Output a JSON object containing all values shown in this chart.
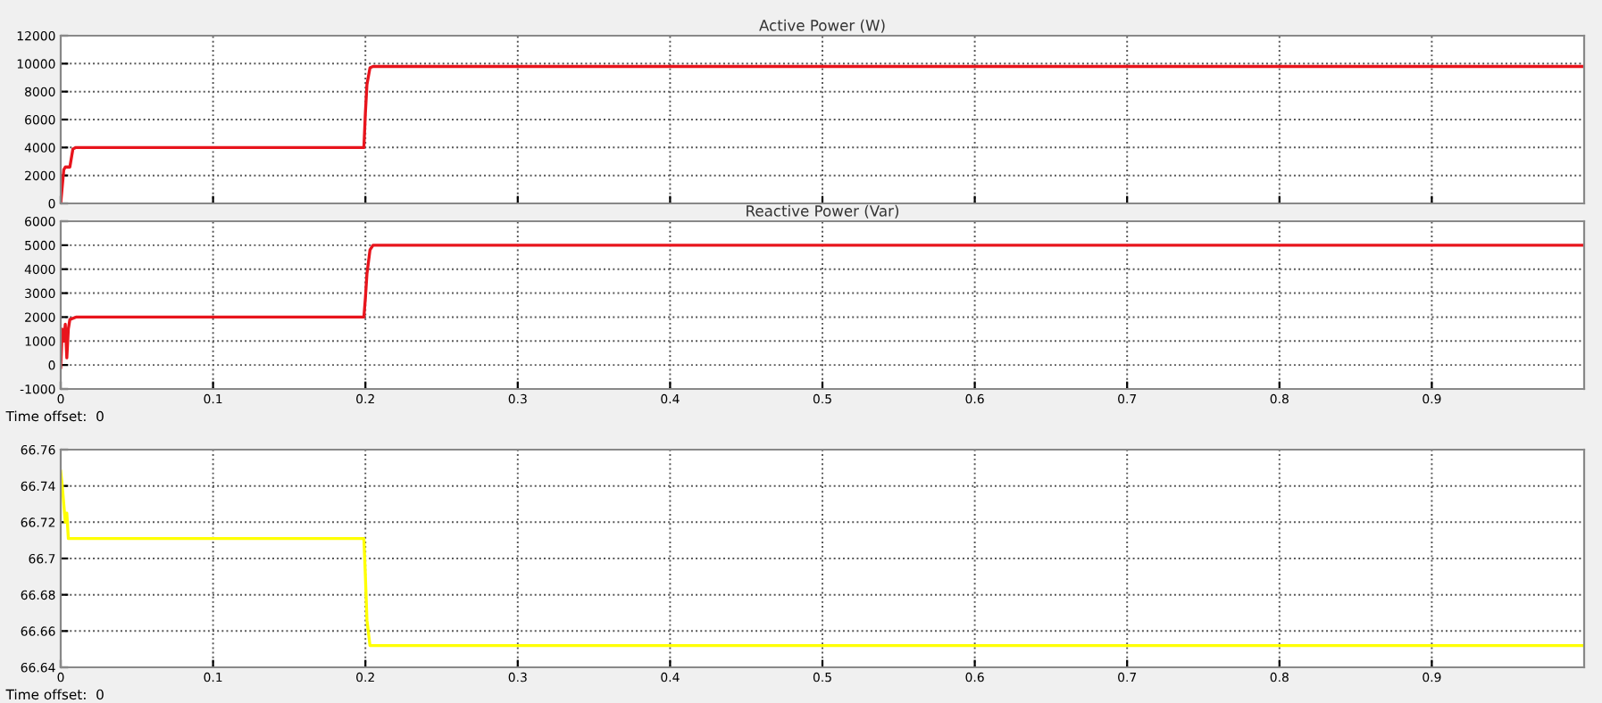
{
  "chart_data": [
    {
      "type": "line",
      "title": "Active Power (W)",
      "x": [
        0,
        0.002,
        0.003,
        0.006,
        0.008,
        0.01,
        0.199,
        0.2,
        0.201,
        0.203,
        0.205,
        1.0
      ],
      "series": [
        {
          "color": "#e8141c",
          "values": [
            0,
            2400,
            2600,
            2600,
            3900,
            4000,
            4000,
            6500,
            8500,
            9700,
            9800,
            9800
          ]
        }
      ],
      "xlim": [
        0,
        1
      ],
      "ylim": [
        0,
        12000
      ],
      "yticks": [
        0,
        2000,
        4000,
        6000,
        8000,
        10000,
        12000
      ],
      "xticks": [
        0,
        0.1,
        0.2,
        0.3,
        0.4,
        0.5,
        0.6,
        0.7,
        0.8,
        0.9
      ],
      "tick_labels": "y",
      "grid": true
    },
    {
      "type": "line",
      "title": "Reactive Power (Var)",
      "x": [
        0,
        0.001,
        0.002,
        0.003,
        0.004,
        0.005,
        0.006,
        0.01,
        0.199,
        0.2,
        0.201,
        0.203,
        0.205,
        1.0
      ],
      "series": [
        {
          "color": "#e8141c",
          "values": [
            -100,
            1500,
            1000,
            1700,
            300,
            1500,
            1900,
            2000,
            2000,
            2800,
            3800,
            4800,
            5000,
            5000
          ]
        }
      ],
      "xlim": [
        0,
        1
      ],
      "ylim": [
        -1000,
        6000
      ],
      "yticks": [
        -1000,
        0,
        1000,
        2000,
        3000,
        4000,
        5000,
        6000
      ],
      "xticks": [
        0,
        0.1,
        0.2,
        0.3,
        0.4,
        0.5,
        0.6,
        0.7,
        0.8,
        0.9
      ],
      "grid": true,
      "annotations": [
        "Time offset:  0"
      ]
    },
    {
      "type": "line",
      "x": [
        0,
        0.001,
        0.003,
        0.004,
        0.005,
        0.01,
        0.199,
        0.2,
        0.201,
        0.203,
        1.0
      ],
      "series": [
        {
          "color": "#ffff00",
          "values": [
            66.748,
            66.74,
            66.72,
            66.725,
            66.711,
            66.711,
            66.711,
            66.69,
            66.666,
            66.652,
            66.652
          ]
        }
      ],
      "xlim": [
        0,
        1
      ],
      "ylim": [
        66.64,
        66.76
      ],
      "yticks": [
        66.64,
        66.66,
        66.68,
        66.7,
        66.72,
        66.74,
        66.76
      ],
      "xticks": [
        0,
        0.1,
        0.2,
        0.3,
        0.4,
        0.5,
        0.6,
        0.7,
        0.8,
        0.9
      ],
      "grid": true,
      "annotations": [
        "Time offset:  0"
      ]
    }
  ]
}
